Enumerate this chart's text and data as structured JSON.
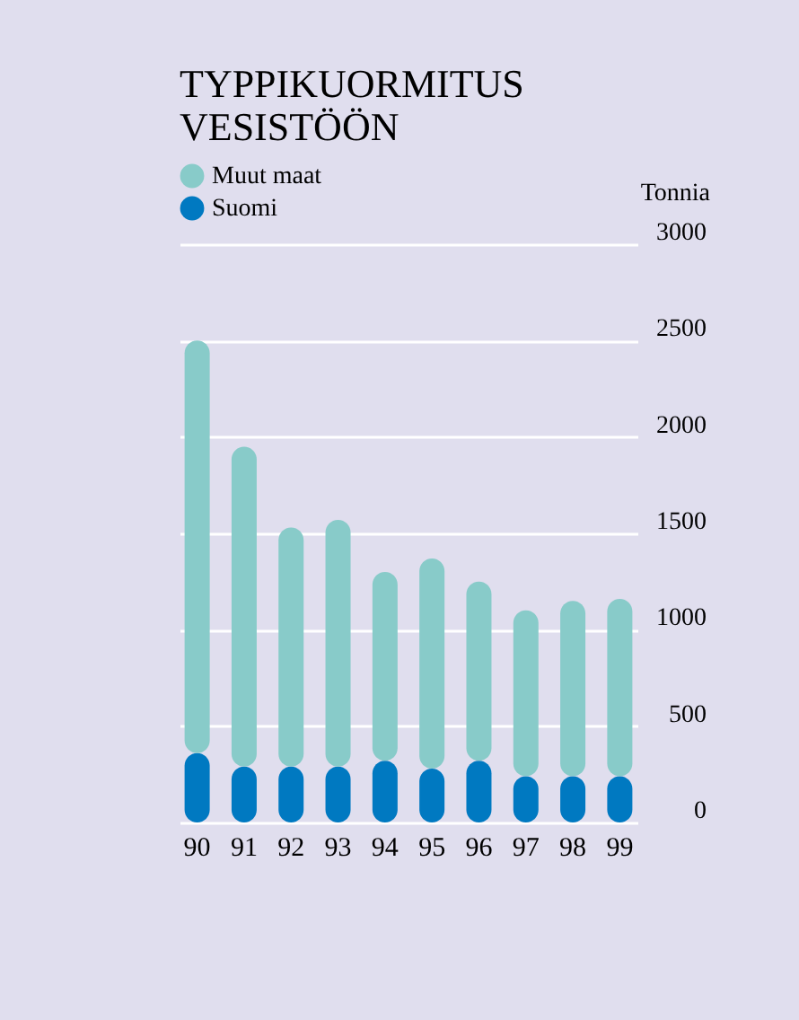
{
  "chart_data": {
    "type": "bar",
    "title": "TYPPIKUORMITUS VESISTÖÖN",
    "ylabel": "Tonnia",
    "stacked": true,
    "categories": [
      "90",
      "91",
      "92",
      "93",
      "94",
      "95",
      "96",
      "97",
      "98",
      "99"
    ],
    "series": [
      {
        "name": "Suomi",
        "color": "#0079c1",
        "values": [
          360,
          290,
          290,
          290,
          320,
          280,
          320,
          240,
          240,
          240
        ]
      },
      {
        "name": "Muut maat",
        "color": "#88cbc9",
        "values": [
          2140,
          1660,
          1240,
          1280,
          980,
          1090,
          930,
          860,
          910,
          920
        ]
      }
    ],
    "ylim": [
      0,
      3000
    ],
    "yticks": [
      0,
      500,
      1000,
      1500,
      2000,
      2500,
      3000
    ],
    "grid": "y",
    "legend": "top left"
  }
}
